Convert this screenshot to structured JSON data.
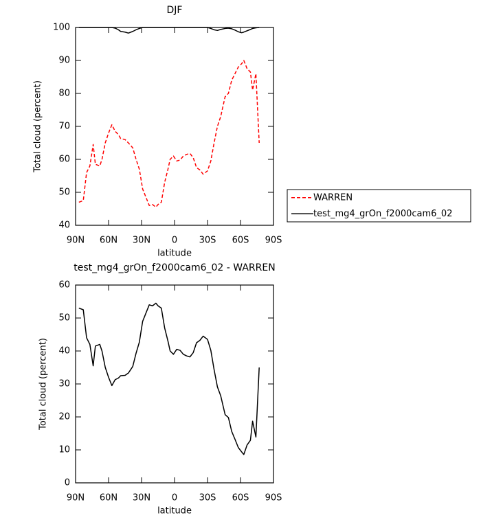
{
  "chart_data": [
    {
      "type": "line",
      "title": "DJF",
      "xlabel": "latitude",
      "ylabel": "Total cloud (percent)",
      "x": [
        87,
        83,
        80,
        77,
        74,
        72,
        68,
        66,
        63,
        60,
        57,
        54,
        51,
        49,
        45,
        42,
        38,
        35,
        32,
        29,
        26,
        23,
        20,
        17,
        15,
        12,
        9,
        6,
        4,
        1,
        -2,
        -5,
        -8,
        -11,
        -14,
        -17,
        -20,
        -23,
        -26,
        -30,
        -33,
        -36,
        -39,
        -42,
        -46,
        -49,
        -52,
        -55,
        -58,
        -61,
        -63,
        -66,
        -69,
        -71,
        -74,
        -77
      ],
      "series": [
        {
          "name": "WARREN",
          "color": "#ff0000",
          "linestyle": "dashed",
          "values": [
            47,
            47.5,
            56,
            58,
            64.5,
            58.5,
            58,
            60,
            65,
            68,
            70.5,
            68.5,
            67.5,
            66.3,
            66,
            65,
            63.5,
            60,
            57,
            51,
            48.5,
            46,
            46.3,
            45.5,
            46.3,
            47,
            53,
            57,
            60,
            61,
            59.5,
            59.8,
            61,
            61.5,
            61.8,
            60.5,
            57.5,
            56.8,
            55.5,
            56.5,
            59.5,
            65,
            70,
            73,
            79,
            80,
            84,
            86,
            88,
            89,
            90,
            87.5,
            86.5,
            81,
            86,
            65
          ]
        },
        {
          "name": "test_mg4_grOn_f2000cam6_02",
          "color": "#000000",
          "linestyle": "solid",
          "values": [
            100,
            100,
            100,
            100,
            100,
            100,
            100,
            100,
            100,
            100,
            100,
            99.8,
            99.3,
            98.8,
            98.6,
            98.3,
            98.8,
            99.3,
            99.7,
            100,
            100,
            100,
            100,
            100,
            100,
            100,
            100,
            100,
            100,
            100,
            100,
            100,
            100,
            100,
            100,
            100,
            100,
            100,
            100,
            100,
            99.7,
            99.3,
            99.1,
            99.4,
            99.7,
            99.8,
            99.6,
            99.2,
            98.7,
            98.4,
            98.6,
            99.0,
            99.4,
            99.7,
            99.9,
            100
          ]
        }
      ],
      "xlim": [
        90,
        -90
      ],
      "xticks": [
        {
          "value": 90,
          "label": "90N"
        },
        {
          "value": 60,
          "label": "60N"
        },
        {
          "value": 30,
          "label": "30N"
        },
        0,
        {
          "value": -30,
          "label": "30S"
        },
        {
          "value": -60,
          "label": "60S"
        },
        {
          "value": -90,
          "label": "90S"
        }
      ],
      "ylim": [
        40,
        100
      ],
      "yticks": [
        40,
        50,
        60,
        70,
        80,
        90,
        100
      ],
      "legend": "right"
    },
    {
      "type": "line",
      "title": "test_mg4_grOn_f2000cam6_02 - WARREN",
      "xlabel": "latitude",
      "ylabel": "Total cloud (percent)",
      "x": [
        87,
        83,
        80,
        77,
        74,
        72,
        68,
        66,
        63,
        60,
        57,
        54,
        51,
        49,
        45,
        42,
        38,
        35,
        32,
        29,
        26,
        23,
        20,
        17,
        15,
        12,
        9,
        6,
        4,
        1,
        -2,
        -5,
        -8,
        -11,
        -14,
        -17,
        -20,
        -23,
        -26,
        -30,
        -33,
        -36,
        -39,
        -42,
        -46,
        -49,
        -52,
        -55,
        -58,
        -61,
        -63,
        -66,
        -69,
        -71,
        -74,
        -77
      ],
      "series": [
        {
          "color": "#000000",
          "linestyle": "solid",
          "values": [
            53,
            52.5,
            44,
            42,
            35.5,
            41.5,
            42,
            40,
            35,
            32,
            29.5,
            31.3,
            31.8,
            32.5,
            32.6,
            33.3,
            35.3,
            39.3,
            42.7,
            49,
            51.5,
            54,
            53.7,
            54.5,
            53.7,
            53,
            47,
            43,
            40,
            39,
            40.5,
            40.2,
            39,
            38.5,
            38.2,
            39.5,
            42.5,
            43.2,
            44.5,
            43.5,
            40.2,
            34.3,
            29.1,
            26.4,
            20.7,
            19.8,
            15.6,
            13.2,
            10.7,
            9.4,
            8.6,
            11.5,
            12.9,
            18.7,
            13.9,
            35
          ]
        }
      ],
      "xlim": [
        90,
        -90
      ],
      "xticks": [
        {
          "value": 90,
          "label": "90N"
        },
        {
          "value": 60,
          "label": "60N"
        },
        {
          "value": 30,
          "label": "30N"
        },
        0,
        {
          "value": -30,
          "label": "30S"
        },
        {
          "value": -60,
          "label": "60S"
        },
        {
          "value": -90,
          "label": "90S"
        }
      ],
      "ylim": [
        0,
        60
      ],
      "yticks": [
        0,
        10,
        20,
        30,
        40,
        50,
        60
      ]
    }
  ]
}
